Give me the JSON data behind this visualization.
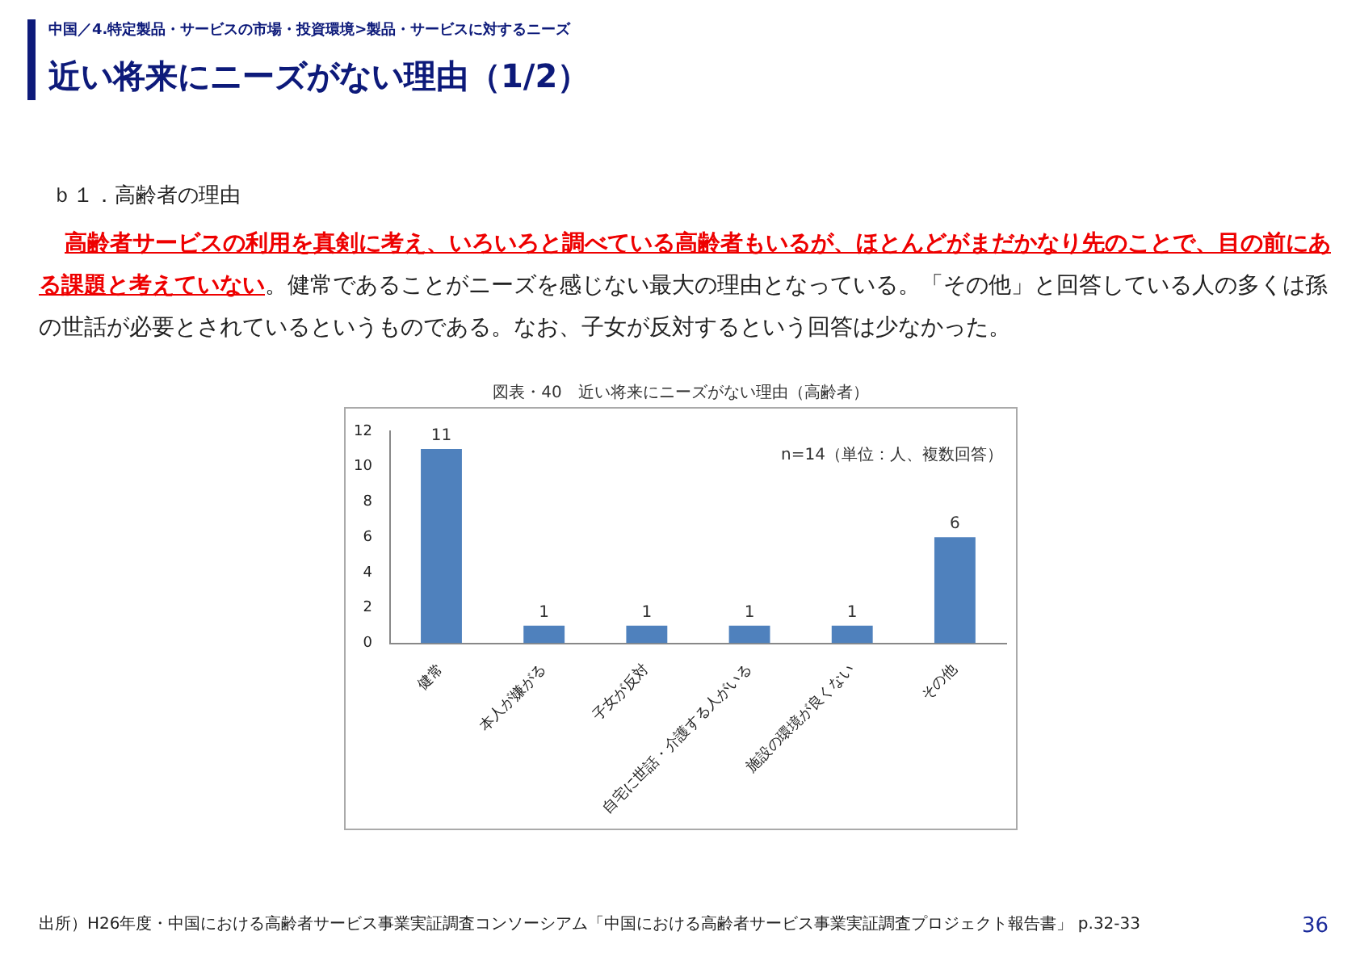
{
  "chart_data": {
    "type": "bar",
    "title": "近い将来にニーズがない理由（1/2）",
    "subtitle": "中国／4.特定製品・サービスの市場・投資環境>製品・サービスに対するニーズ",
    "annotations": [
      "ｂ１．高齢者の理由",
      "高齢者サービスの利用を真剣に考え、いろいろと調べている高齢者もいるが、ほとんどがまだかなり先のことで、目の前にある課題と考えていない",
      "。健常であることがニーズを感じない最大の理由となっている。「その他」と回答している人の多くは孫の世話が必要とされているというものである。なお、子女が反対するという回答は少なかった。",
      "図表・40　近い将来にニーズがない理由（高齢者）",
      "n=14（単位：人、複数回答）",
      "出所）H26年度・中国における高齢者サービス事業実証調査コンソーシアム「中国における高齢者サービス事業実証調査プロジェクト報告書」 p.32-33",
      "36"
    ],
    "categories": [
      "健常",
      "本人が嫌がる",
      "子女が反対",
      "自宅に世話・介護する人がいる",
      "施設の環境が良くない",
      "その他"
    ],
    "values": [
      11,
      1,
      1,
      1,
      1,
      6
    ],
    "color": "#4f81bd",
    "ylim": [
      0,
      12
    ],
    "yticks": [
      0,
      2,
      4,
      6,
      8,
      10,
      12
    ],
    "grid": false,
    "legend": false,
    "data_labels": true
  }
}
